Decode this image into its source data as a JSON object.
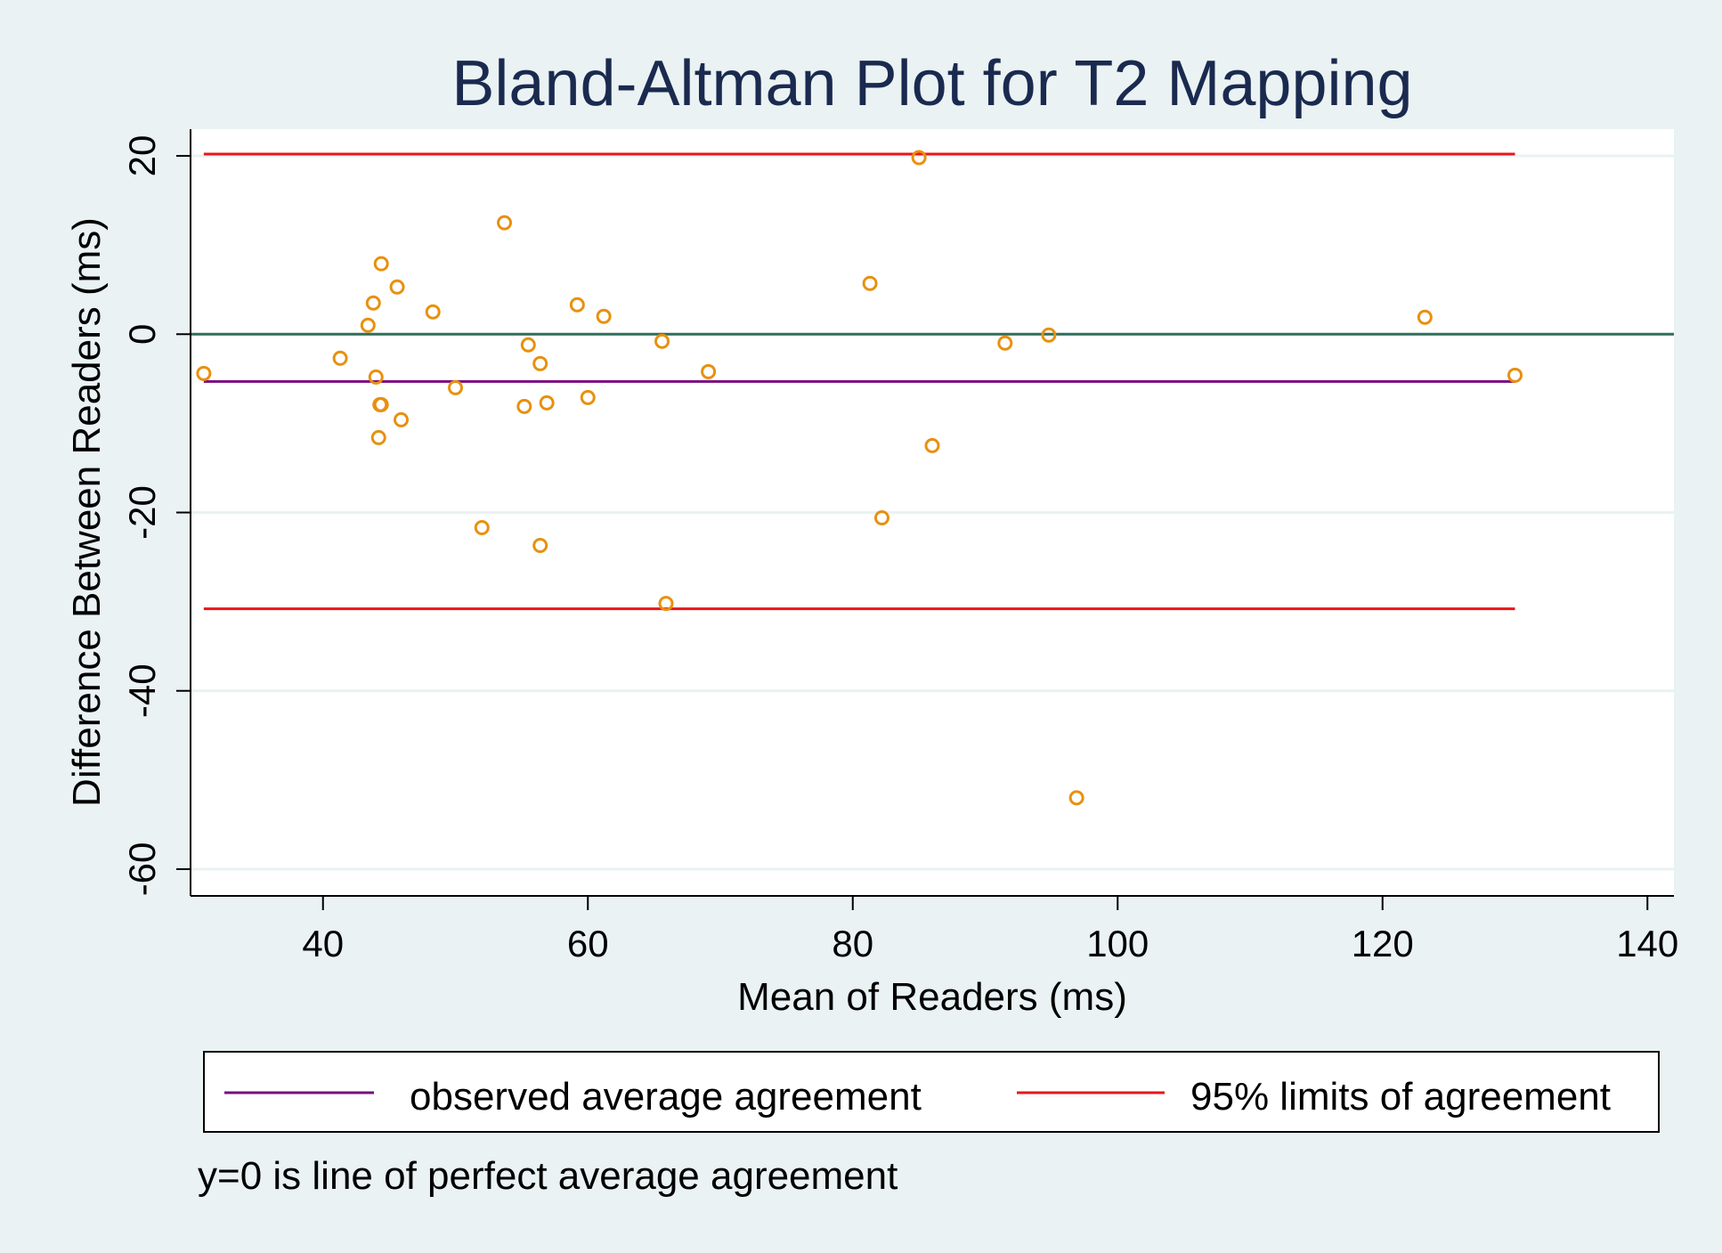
{
  "chart_data": {
    "type": "scatter",
    "title": "Bland-Altman Plot for T2 Mapping",
    "xlabel": "Mean of Readers (ms)",
    "ylabel": "Difference Between Readers (ms)",
    "xlim": [
      30,
      142
    ],
    "ylim": [
      -63,
      23
    ],
    "xticks": [
      40,
      60,
      80,
      100,
      120,
      140
    ],
    "yticks": [
      -60,
      -40,
      -20,
      0,
      20
    ],
    "grid": true,
    "legend_position": "bottom",
    "note": "y=0 is line of perfect average agreement",
    "points": {
      "x": [
        31,
        41.3,
        43.4,
        43.8,
        44,
        44.2,
        44.3,
        44.4,
        44.4,
        45.6,
        45.9,
        48.3,
        50,
        52,
        53.7,
        55.2,
        55.5,
        56.4,
        56.4,
        56.9,
        59.2,
        60,
        61.2,
        65.6,
        65.9,
        69.1,
        81.3,
        82.2,
        85,
        86,
        91.5,
        94.8,
        96.9,
        123.2,
        130
      ],
      "y": [
        -4.4,
        -2.7,
        1,
        3.5,
        -4.8,
        -11.6,
        -7.9,
        7.9,
        -7.9,
        5.3,
        -9.6,
        2.5,
        -6,
        -21.7,
        12.5,
        -8.1,
        -1.2,
        -3.3,
        -23.7,
        -7.7,
        3.3,
        -7.1,
        2,
        -0.8,
        -30.2,
        -4.2,
        5.7,
        -20.6,
        19.8,
        -12.5,
        -1,
        -0.1,
        -52,
        1.9,
        -4.6
      ],
      "color": "#e8900f"
    },
    "lines": [
      {
        "name": "observed average agreement",
        "y": -5.3,
        "x_range": [
          31,
          130
        ],
        "color": "#7a0a80"
      },
      {
        "name": "95% limits of agreement",
        "y": 20.2,
        "x_range": [
          31,
          130
        ],
        "color": "#e8161b"
      },
      {
        "name": "95% limits of agreement",
        "y": -30.8,
        "x_range": [
          31,
          130
        ],
        "color": "#e8161b"
      },
      {
        "name": "",
        "y": 0,
        "x_range": [
          30,
          142
        ],
        "color": "#2f6e5a"
      }
    ],
    "legend": [
      {
        "label": "observed average agreement",
        "color": "#7a0a80"
      },
      {
        "label": "95% limits of agreement",
        "color": "#e8161b"
      }
    ]
  },
  "colors": {
    "outer_background": "#eaf2f3",
    "plot_background": "#ffffff",
    "gridline": "#eaf2f3",
    "title": "#1a2a4f",
    "text": "#000000"
  }
}
